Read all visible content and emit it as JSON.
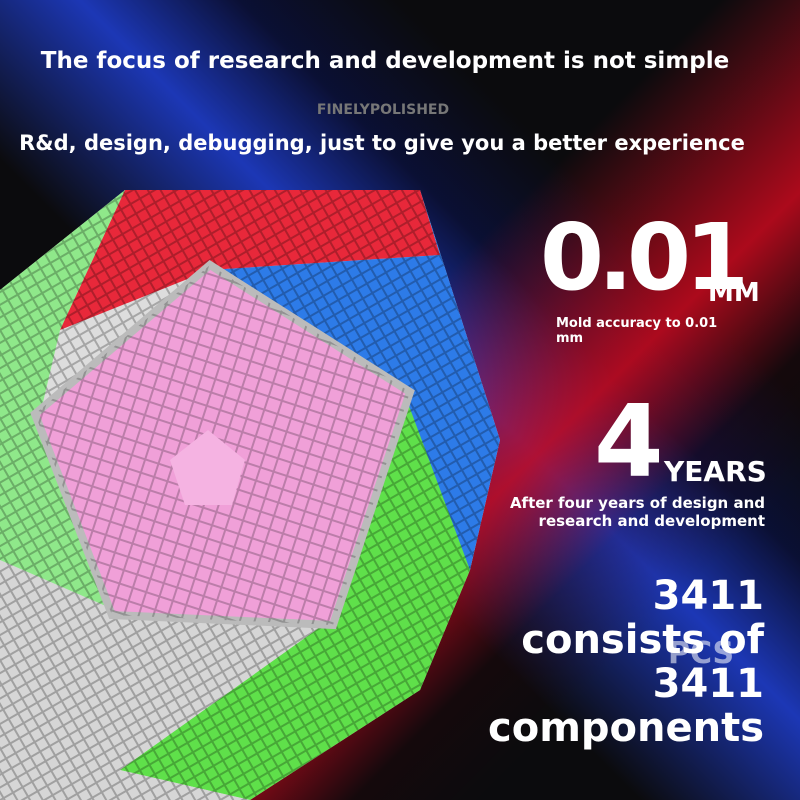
{
  "header": {
    "title": "The focus of research and development is not simple",
    "brand": "FINELYPOLISHED",
    "subtitle": "R&d, design, debugging, just to give you a better experience"
  },
  "features": [
    {
      "value": "0.01",
      "unit": "MM",
      "description": "Mold accuracy to 0.01 mm"
    },
    {
      "value": "4",
      "unit": "YEARS",
      "description": "After four years of design and research and development"
    }
  ],
  "components": {
    "text": "3411 consists of 3411 components",
    "overlay": "PCS"
  }
}
